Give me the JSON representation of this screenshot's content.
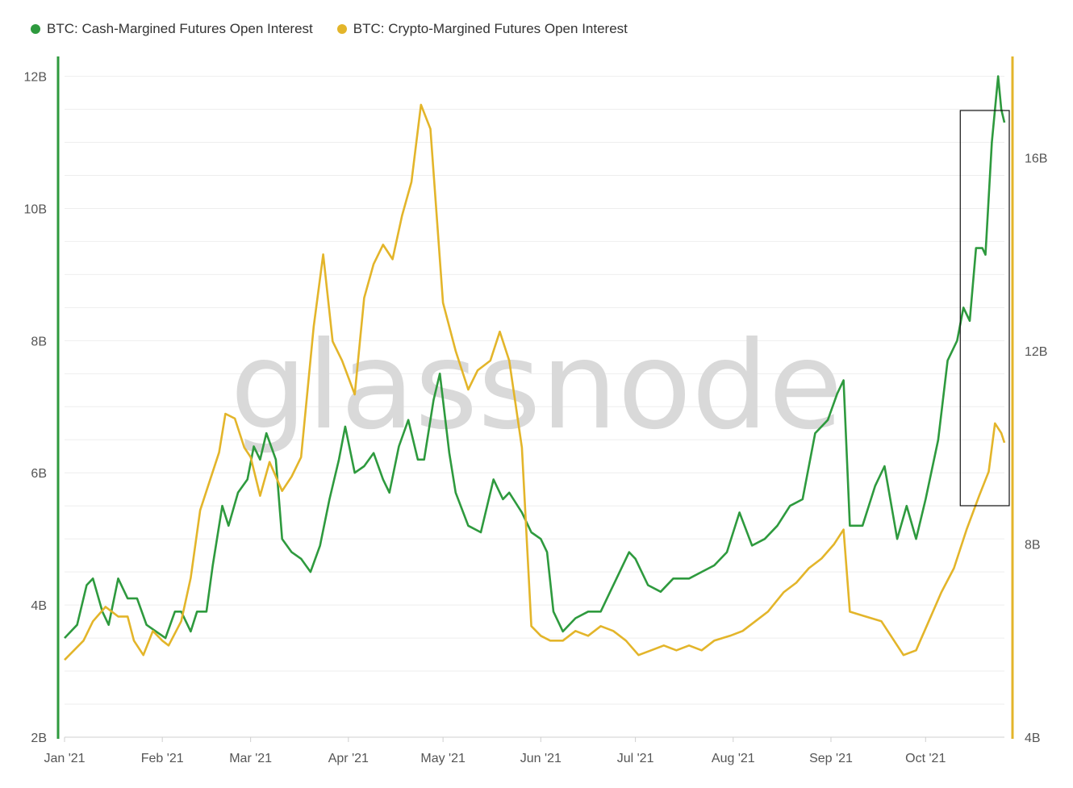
{
  "legend": {
    "cash_label": "BTC: Cash-Margined Futures Open Interest",
    "crypto_label": "BTC: Crypto-Margined Futures Open Interest"
  },
  "watermark": "glassnode",
  "colors": {
    "cash": "#2e9a3e",
    "crypto": "#e3b52a",
    "box": "#111111"
  },
  "chart_data": {
    "type": "line",
    "title": "",
    "x_ticks": [
      "Jan '21",
      "Feb '21",
      "Mar '21",
      "Apr '21",
      "May '21",
      "Jun '21",
      "Jul '21",
      "Aug '21",
      "Sep '21",
      "Oct '21"
    ],
    "x_range": [
      "2021-01-01",
      "2021-10-26"
    ],
    "y_left": {
      "ticks": [
        "2B",
        "4B",
        "6B",
        "8B",
        "10B",
        "12B"
      ],
      "range": [
        2,
        12.3
      ],
      "unit": "B"
    },
    "y_right": {
      "ticks": [
        "4B",
        "8B",
        "12B",
        "16B"
      ],
      "range": [
        4,
        18.1
      ],
      "unit": "B"
    },
    "grid": true,
    "legend_position": "top-left",
    "highlight_box": {
      "from": "2021-10-12",
      "to": "2021-10-26"
    },
    "series": [
      {
        "name": "BTC: Cash-Margined Futures Open Interest",
        "axis": "left",
        "points": [
          [
            "2021-01-01",
            3.5
          ],
          [
            "2021-01-05",
            3.7
          ],
          [
            "2021-01-08",
            4.3
          ],
          [
            "2021-01-10",
            4.4
          ],
          [
            "2021-01-13",
            3.9
          ],
          [
            "2021-01-15",
            3.7
          ],
          [
            "2021-01-18",
            4.4
          ],
          [
            "2021-01-21",
            4.1
          ],
          [
            "2021-01-24",
            4.1
          ],
          [
            "2021-01-27",
            3.7
          ],
          [
            "2021-01-30",
            3.6
          ],
          [
            "2021-02-02",
            3.5
          ],
          [
            "2021-02-05",
            3.9
          ],
          [
            "2021-02-07",
            3.9
          ],
          [
            "2021-02-10",
            3.6
          ],
          [
            "2021-02-12",
            3.9
          ],
          [
            "2021-02-15",
            3.9
          ],
          [
            "2021-02-17",
            4.6
          ],
          [
            "2021-02-20",
            5.5
          ],
          [
            "2021-02-22",
            5.2
          ],
          [
            "2021-02-25",
            5.7
          ],
          [
            "2021-02-28",
            5.9
          ],
          [
            "2021-03-02",
            6.4
          ],
          [
            "2021-03-04",
            6.2
          ],
          [
            "2021-03-06",
            6.6
          ],
          [
            "2021-03-09",
            6.2
          ],
          [
            "2021-03-11",
            5.0
          ],
          [
            "2021-03-14",
            4.8
          ],
          [
            "2021-03-17",
            4.7
          ],
          [
            "2021-03-20",
            4.5
          ],
          [
            "2021-03-23",
            4.9
          ],
          [
            "2021-03-26",
            5.6
          ],
          [
            "2021-03-29",
            6.2
          ],
          [
            "2021-03-31",
            6.7
          ],
          [
            "2021-04-03",
            6.0
          ],
          [
            "2021-04-06",
            6.1
          ],
          [
            "2021-04-09",
            6.3
          ],
          [
            "2021-04-12",
            5.9
          ],
          [
            "2021-04-14",
            5.7
          ],
          [
            "2021-04-17",
            6.4
          ],
          [
            "2021-04-20",
            6.8
          ],
          [
            "2021-04-23",
            6.2
          ],
          [
            "2021-04-25",
            6.2
          ],
          [
            "2021-04-28",
            7.1
          ],
          [
            "2021-04-30",
            7.5
          ],
          [
            "2021-05-03",
            6.3
          ],
          [
            "2021-05-05",
            5.7
          ],
          [
            "2021-05-09",
            5.2
          ],
          [
            "2021-05-13",
            5.1
          ],
          [
            "2021-05-17",
            5.9
          ],
          [
            "2021-05-20",
            5.6
          ],
          [
            "2021-05-22",
            5.7
          ],
          [
            "2021-05-26",
            5.4
          ],
          [
            "2021-05-29",
            5.1
          ],
          [
            "2021-06-01",
            5.0
          ],
          [
            "2021-06-03",
            4.8
          ],
          [
            "2021-06-05",
            3.9
          ],
          [
            "2021-06-08",
            3.6
          ],
          [
            "2021-06-12",
            3.8
          ],
          [
            "2021-06-16",
            3.9
          ],
          [
            "2021-06-20",
            3.9
          ],
          [
            "2021-06-23",
            4.2
          ],
          [
            "2021-06-26",
            4.5
          ],
          [
            "2021-06-29",
            4.8
          ],
          [
            "2021-07-01",
            4.7
          ],
          [
            "2021-07-05",
            4.3
          ],
          [
            "2021-07-09",
            4.2
          ],
          [
            "2021-07-13",
            4.4
          ],
          [
            "2021-07-18",
            4.4
          ],
          [
            "2021-07-22",
            4.5
          ],
          [
            "2021-07-26",
            4.6
          ],
          [
            "2021-07-30",
            4.8
          ],
          [
            "2021-08-03",
            5.4
          ],
          [
            "2021-08-07",
            4.9
          ],
          [
            "2021-08-11",
            5.0
          ],
          [
            "2021-08-15",
            5.2
          ],
          [
            "2021-08-19",
            5.5
          ],
          [
            "2021-08-23",
            5.6
          ],
          [
            "2021-08-27",
            6.6
          ],
          [
            "2021-08-31",
            6.8
          ],
          [
            "2021-09-03",
            7.2
          ],
          [
            "2021-09-05",
            7.4
          ],
          [
            "2021-09-07",
            5.2
          ],
          [
            "2021-09-11",
            5.2
          ],
          [
            "2021-09-15",
            5.8
          ],
          [
            "2021-09-18",
            6.1
          ],
          [
            "2021-09-22",
            5.0
          ],
          [
            "2021-09-25",
            5.5
          ],
          [
            "2021-09-28",
            5.0
          ],
          [
            "2021-10-01",
            5.6
          ],
          [
            "2021-10-05",
            6.5
          ],
          [
            "2021-10-08",
            7.7
          ],
          [
            "2021-10-11",
            8.0
          ],
          [
            "2021-10-13",
            8.5
          ],
          [
            "2021-10-15",
            8.3
          ],
          [
            "2021-10-17",
            9.4
          ],
          [
            "2021-10-19",
            9.4
          ],
          [
            "2021-10-20",
            9.3
          ],
          [
            "2021-10-22",
            11.0
          ],
          [
            "2021-10-24",
            12.0
          ],
          [
            "2021-10-25",
            11.5
          ],
          [
            "2021-10-26",
            11.3
          ]
        ]
      },
      {
        "name": "BTC: Crypto-Margined Futures Open Interest",
        "axis": "right",
        "points": [
          [
            "2021-01-01",
            5.6
          ],
          [
            "2021-01-04",
            5.8
          ],
          [
            "2021-01-07",
            6.0
          ],
          [
            "2021-01-10",
            6.4
          ],
          [
            "2021-01-14",
            6.7
          ],
          [
            "2021-01-18",
            6.5
          ],
          [
            "2021-01-21",
            6.5
          ],
          [
            "2021-01-23",
            6.0
          ],
          [
            "2021-01-26",
            5.7
          ],
          [
            "2021-01-29",
            6.2
          ],
          [
            "2021-02-01",
            6.0
          ],
          [
            "2021-02-03",
            5.9
          ],
          [
            "2021-02-07",
            6.4
          ],
          [
            "2021-02-10",
            7.3
          ],
          [
            "2021-02-13",
            8.7
          ],
          [
            "2021-02-16",
            9.3
          ],
          [
            "2021-02-19",
            9.9
          ],
          [
            "2021-02-21",
            10.7
          ],
          [
            "2021-02-24",
            10.6
          ],
          [
            "2021-02-27",
            10.0
          ],
          [
            "2021-03-01",
            9.8
          ],
          [
            "2021-03-04",
            9.0
          ],
          [
            "2021-03-07",
            9.7
          ],
          [
            "2021-03-11",
            9.1
          ],
          [
            "2021-03-14",
            9.4
          ],
          [
            "2021-03-17",
            9.8
          ],
          [
            "2021-03-21",
            12.5
          ],
          [
            "2021-03-24",
            14.0
          ],
          [
            "2021-03-27",
            12.2
          ],
          [
            "2021-03-30",
            11.8
          ],
          [
            "2021-04-03",
            11.1
          ],
          [
            "2021-04-06",
            13.1
          ],
          [
            "2021-04-09",
            13.8
          ],
          [
            "2021-04-12",
            14.2
          ],
          [
            "2021-04-15",
            13.9
          ],
          [
            "2021-04-18",
            14.8
          ],
          [
            "2021-04-21",
            15.5
          ],
          [
            "2021-04-24",
            17.1
          ],
          [
            "2021-04-27",
            16.6
          ],
          [
            "2021-05-01",
            13.0
          ],
          [
            "2021-05-05",
            12.0
          ],
          [
            "2021-05-09",
            11.2
          ],
          [
            "2021-05-12",
            11.6
          ],
          [
            "2021-05-16",
            11.8
          ],
          [
            "2021-05-19",
            12.4
          ],
          [
            "2021-05-22",
            11.8
          ],
          [
            "2021-05-26",
            10.0
          ],
          [
            "2021-05-29",
            6.3
          ],
          [
            "2021-06-01",
            6.1
          ],
          [
            "2021-06-04",
            6.0
          ],
          [
            "2021-06-08",
            6.0
          ],
          [
            "2021-06-12",
            6.2
          ],
          [
            "2021-06-16",
            6.1
          ],
          [
            "2021-06-20",
            6.3
          ],
          [
            "2021-06-24",
            6.2
          ],
          [
            "2021-06-28",
            6.0
          ],
          [
            "2021-07-02",
            5.7
          ],
          [
            "2021-07-06",
            5.8
          ],
          [
            "2021-07-10",
            5.9
          ],
          [
            "2021-07-14",
            5.8
          ],
          [
            "2021-07-18",
            5.9
          ],
          [
            "2021-07-22",
            5.8
          ],
          [
            "2021-07-26",
            6.0
          ],
          [
            "2021-07-31",
            6.1
          ],
          [
            "2021-08-04",
            6.2
          ],
          [
            "2021-08-08",
            6.4
          ],
          [
            "2021-08-12",
            6.6
          ],
          [
            "2021-08-17",
            7.0
          ],
          [
            "2021-08-21",
            7.2
          ],
          [
            "2021-08-25",
            7.5
          ],
          [
            "2021-08-29",
            7.7
          ],
          [
            "2021-09-02",
            8.0
          ],
          [
            "2021-09-05",
            8.3
          ],
          [
            "2021-09-07",
            6.6
          ],
          [
            "2021-09-12",
            6.5
          ],
          [
            "2021-09-17",
            6.4
          ],
          [
            "2021-09-21",
            6.0
          ],
          [
            "2021-09-24",
            5.7
          ],
          [
            "2021-09-28",
            5.8
          ],
          [
            "2021-10-02",
            6.4
          ],
          [
            "2021-10-06",
            7.0
          ],
          [
            "2021-10-10",
            7.5
          ],
          [
            "2021-10-14",
            8.3
          ],
          [
            "2021-10-18",
            9.0
          ],
          [
            "2021-10-21",
            9.5
          ],
          [
            "2021-10-23",
            10.5
          ],
          [
            "2021-10-25",
            10.3
          ],
          [
            "2021-10-26",
            10.1
          ]
        ]
      }
    ]
  }
}
